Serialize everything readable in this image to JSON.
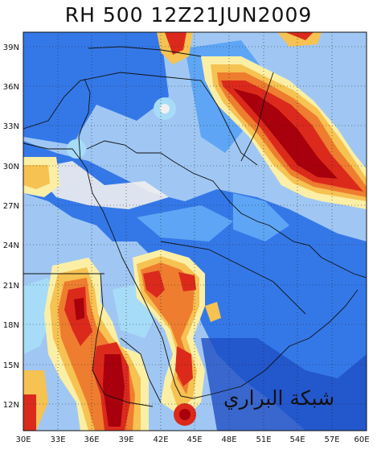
{
  "title": "RH 500 12Z21JUN2009",
  "watermark": "شبكة البراري",
  "axes": {
    "lat_ticks": [
      "39N",
      "36N",
      "33N",
      "30N",
      "27N",
      "24N",
      "21N",
      "18N",
      "15N",
      "12N"
    ],
    "lon_ticks": [
      "30E",
      "33E",
      "36E",
      "39E",
      "42E",
      "45E",
      "48E",
      "51E",
      "54E",
      "57E",
      "60E"
    ]
  },
  "colors": {
    "deep_blue": "#1f4fc4",
    "mid_blue": "#3478e8",
    "light_blue": "#5ea6f5",
    "pale_blue": "#a6dcf7",
    "cream": "#fbefa6",
    "gold": "#f6c252",
    "orange": "#ee7d2f",
    "red": "#db2a1c",
    "dark_red": "#a8000c",
    "background": "#f4f4f4"
  }
}
